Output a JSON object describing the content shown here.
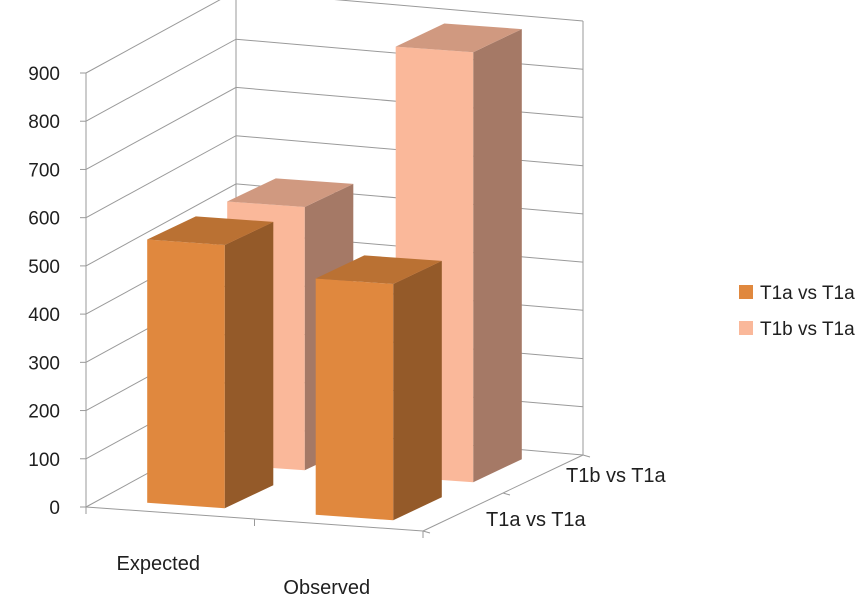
{
  "chart_data": {
    "type": "bar",
    "subtype": "3d-column",
    "title": "",
    "xlabel": "",
    "ylabel": "",
    "ylim": [
      0,
      900
    ],
    "yticks": [
      "0",
      "100",
      "200",
      "300",
      "400",
      "500",
      "600",
      "700",
      "800",
      "900"
    ],
    "categories": [
      "Expected",
      "Observed"
    ],
    "depth_categories": [
      "T1a vs T1a",
      "T1b vs T1a"
    ],
    "series": [
      {
        "name": "T1a vs T1a",
        "color": "#E0883E",
        "values": [
          546,
          490
        ]
      },
      {
        "name": "T1b vs T1a",
        "color": "#FAB89A",
        "values": [
          546,
          892
        ]
      }
    ],
    "grid": true,
    "legend_position": "right"
  }
}
